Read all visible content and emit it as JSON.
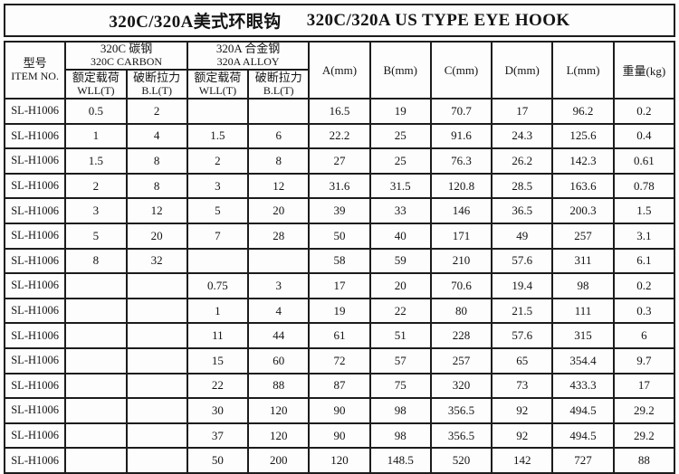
{
  "title": {
    "cn": "320C/320A美式环眼钩",
    "en": "320C/320A US TYPE EYE HOOK"
  },
  "table": {
    "item_col": {
      "cn": "型号",
      "en": "ITEM NO."
    },
    "groups": [
      {
        "cn": "320C 碳钢",
        "en": "320C CARBON"
      },
      {
        "cn": "320A 合金钢",
        "en": "320A ALLOY"
      }
    ],
    "sub_headers": [
      {
        "cn": "额定载荷",
        "en": "WLL(T)"
      },
      {
        "cn": "破断拉力",
        "en": "B.L(T)"
      },
      {
        "cn": "额定载荷",
        "en": "WLL(T)"
      },
      {
        "cn": "破断拉力",
        "en": "B.L(T)"
      }
    ],
    "dim_headers": [
      "A(mm)",
      "B(mm)",
      "C(mm)",
      "D(mm)",
      "L(mm)",
      "重量(kg)"
    ],
    "rows": [
      {
        "item": "SL-H1006",
        "cells": [
          "0.5",
          "2",
          "",
          "",
          "16.5",
          "19",
          "70.7",
          "17",
          "96.2",
          "0.2"
        ]
      },
      {
        "item": "SL-H1006",
        "cells": [
          "1",
          "4",
          "1.5",
          "6",
          "22.2",
          "25",
          "91.6",
          "24.3",
          "125.6",
          "0.4"
        ]
      },
      {
        "item": "SL-H1006",
        "cells": [
          "1.5",
          "8",
          "2",
          "8",
          "27",
          "25",
          "76.3",
          "26.2",
          "142.3",
          "0.61"
        ]
      },
      {
        "item": "SL-H1006",
        "cells": [
          "2",
          "8",
          "3",
          "12",
          "31.6",
          "31.5",
          "120.8",
          "28.5",
          "163.6",
          "0.78"
        ]
      },
      {
        "item": "SL-H1006",
        "cells": [
          "3",
          "12",
          "5",
          "20",
          "39",
          "33",
          "146",
          "36.5",
          "200.3",
          "1.5"
        ]
      },
      {
        "item": "SL-H1006",
        "cells": [
          "5",
          "20",
          "7",
          "28",
          "50",
          "40",
          "171",
          "49",
          "257",
          "3.1"
        ]
      },
      {
        "item": "SL-H1006",
        "cells": [
          "8",
          "32",
          "",
          "",
          "58",
          "59",
          "210",
          "57.6",
          "311",
          "6.1"
        ]
      },
      {
        "item": "SL-H1006",
        "cells": [
          "",
          "",
          "0.75",
          "3",
          "17",
          "20",
          "70.6",
          "19.4",
          "98",
          "0.2"
        ]
      },
      {
        "item": "SL-H1006",
        "cells": [
          "",
          "",
          "1",
          "4",
          "19",
          "22",
          "80",
          "21.5",
          "111",
          "0.3"
        ]
      },
      {
        "item": "SL-H1006",
        "cells": [
          "",
          "",
          "11",
          "44",
          "61",
          "51",
          "228",
          "57.6",
          "315",
          "6"
        ]
      },
      {
        "item": "SL-H1006",
        "cells": [
          "",
          "",
          "15",
          "60",
          "72",
          "57",
          "257",
          "65",
          "354.4",
          "9.7"
        ]
      },
      {
        "item": "SL-H1006",
        "cells": [
          "",
          "",
          "22",
          "88",
          "87",
          "75",
          "320",
          "73",
          "433.3",
          "17"
        ]
      },
      {
        "item": "SL-H1006",
        "cells": [
          "",
          "",
          "30",
          "120",
          "90",
          "98",
          "356.5",
          "92",
          "494.5",
          "29.2"
        ]
      },
      {
        "item": "SL-H1006",
        "cells": [
          "",
          "",
          "37",
          "120",
          "90",
          "98",
          "356.5",
          "92",
          "494.5",
          "29.2"
        ]
      },
      {
        "item": "SL-H1006",
        "cells": [
          "",
          "",
          "50",
          "200",
          "120",
          "148.5",
          "520",
          "142",
          "727",
          "88"
        ]
      }
    ]
  }
}
